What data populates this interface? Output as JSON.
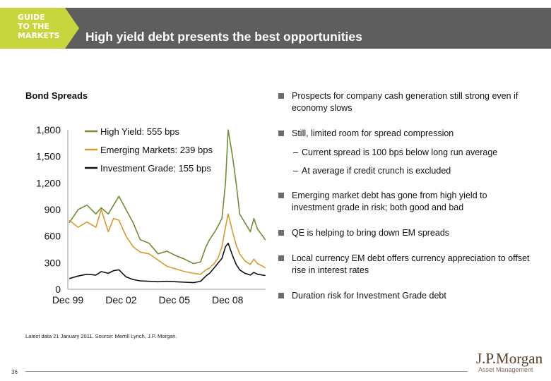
{
  "header": {
    "badge_line1": "GUIDE",
    "badge_line2": "TO THE",
    "badge_line3": "MARKETS",
    "title": "High yield debt presents the best opportunities",
    "bar_color": "#5e5e5e",
    "badge_color": "#c6d63c"
  },
  "chart": {
    "label": "Bond Spreads"
  },
  "chart_data": {
    "type": "line",
    "title": "Bond Spreads",
    "xlabel": "",
    "ylabel": "",
    "ylim": [
      0,
      1800
    ],
    "yticks": [
      "0",
      "300",
      "600",
      "900",
      "1,200",
      "1,500",
      "1,800"
    ],
    "xticks": [
      "Dec 99",
      "Dec 02",
      "Dec 05",
      "Dec 08"
    ],
    "xlim": [
      1999.92,
      2011.06
    ],
    "grid": false,
    "legend_position": "top-right",
    "series": [
      {
        "name": "High Yield: 555 bps",
        "color": "#6d8e35",
        "x": [
          2000.0,
          2000.5,
          2001.0,
          2001.5,
          2001.8,
          2002.2,
          2002.5,
          2002.8,
          2003.2,
          2003.6,
          2004.0,
          2004.5,
          2005.0,
          2005.5,
          2006.0,
          2006.5,
          2007.0,
          2007.4,
          2007.7,
          2007.9,
          2008.2,
          2008.4,
          2008.6,
          2008.8,
          2008.95,
          2009.2,
          2009.4,
          2009.6,
          2009.9,
          2010.2,
          2010.4,
          2010.6,
          2010.9,
          2011.05
        ],
        "y": [
          750,
          900,
          950,
          850,
          920,
          850,
          950,
          1050,
          900,
          750,
          560,
          520,
          400,
          430,
          380,
          340,
          290,
          310,
          480,
          560,
          650,
          720,
          800,
          1200,
          1800,
          1500,
          1200,
          850,
          750,
          650,
          800,
          680,
          600,
          555
        ]
      },
      {
        "name": "Emerging Markets: 239 bps",
        "color": "#d89a2a",
        "x": [
          2000.0,
          2000.5,
          2001.0,
          2001.5,
          2001.8,
          2002.2,
          2002.5,
          2002.8,
          2003.2,
          2003.6,
          2004.0,
          2004.5,
          2005.0,
          2005.5,
          2006.0,
          2006.5,
          2007.0,
          2007.4,
          2007.7,
          2007.9,
          2008.2,
          2008.4,
          2008.6,
          2008.8,
          2008.95,
          2009.2,
          2009.4,
          2009.6,
          2009.9,
          2010.2,
          2010.4,
          2010.6,
          2010.9,
          2011.05
        ],
        "y": [
          780,
          700,
          760,
          700,
          900,
          650,
          800,
          780,
          600,
          480,
          420,
          400,
          330,
          260,
          230,
          200,
          180,
          170,
          220,
          240,
          300,
          360,
          480,
          700,
          850,
          650,
          500,
          400,
          320,
          280,
          340,
          290,
          260,
          239
        ]
      },
      {
        "name": "Investment Grade: 155 bps",
        "color": "#111111",
        "x": [
          2000.0,
          2000.5,
          2001.0,
          2001.5,
          2001.8,
          2002.2,
          2002.5,
          2002.8,
          2003.2,
          2003.6,
          2004.0,
          2004.5,
          2005.0,
          2005.5,
          2006.0,
          2006.5,
          2007.0,
          2007.4,
          2007.7,
          2007.9,
          2008.2,
          2008.4,
          2008.6,
          2008.8,
          2008.95,
          2009.2,
          2009.4,
          2009.6,
          2009.9,
          2010.2,
          2010.4,
          2010.6,
          2010.9,
          2011.05
        ],
        "y": [
          120,
          150,
          170,
          160,
          200,
          180,
          210,
          220,
          140,
          110,
          95,
          90,
          85,
          90,
          85,
          80,
          75,
          90,
          150,
          180,
          250,
          300,
          350,
          480,
          520,
          380,
          280,
          220,
          180,
          160,
          190,
          170,
          160,
          155
        ]
      }
    ]
  },
  "bullets": [
    {
      "text": "Prospects for company cash generation still strong even if economy slows"
    },
    {
      "text": "Still, limited room for spread compression"
    },
    {
      "text": "Emerging market debt has gone from high yield to investment grade in risk; both good and bad"
    },
    {
      "text": "QE is helping to bring down EM spreads"
    },
    {
      "text": "Local currency EM debt offers currency appreciation to offset rise in interest rates"
    },
    {
      "text": "Duration risk for Investment Grade debt"
    }
  ],
  "subbullets": [
    {
      "dash": "–",
      "text": "Current spread is 100 bps below long run average"
    },
    {
      "dash": "–",
      "text": "At average if credit crunch is excluded"
    }
  ],
  "footer": {
    "source": "Latest data 21 January 2011. Source: Merrill Lynch, J.P. Morgan.",
    "page_number": "36",
    "logo_main": "J.P.Morgan",
    "logo_sub": "Asset Management"
  }
}
